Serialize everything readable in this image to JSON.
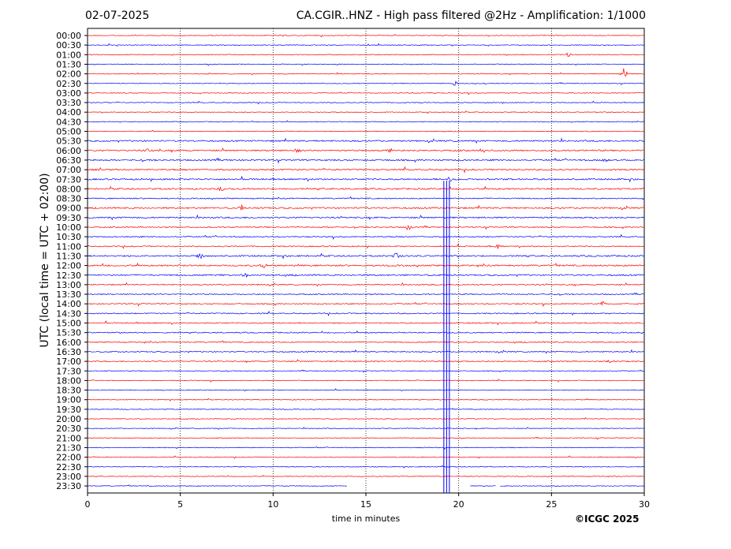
{
  "header": {
    "date": "02-07-2025",
    "title": "CA.CGIR..HNZ - High pass filtered @2Hz - Amplification: 1/1000"
  },
  "footer": {
    "copyright": "©ICGC 2025"
  },
  "colors": {
    "trace_a": "#ff0000",
    "trace_b": "#0000ff",
    "grid": "#000000"
  },
  "chart_data": {
    "type": "line",
    "title": "CA.CGIR..HNZ - High pass filtered @2Hz - Amplification: 1/1000",
    "xlabel": "time in minutes",
    "ylabel": "UTC (local time = UTC + 02:00)",
    "xlim": [
      0,
      30
    ],
    "x_ticks": [
      0,
      5,
      10,
      15,
      20,
      25,
      30
    ],
    "grid": "vertical dotted at 5, 10, 15, 20, 25",
    "row_labels": [
      "00:00",
      "00:30",
      "01:00",
      "01:30",
      "02:00",
      "02:30",
      "03:00",
      "03:30",
      "04:00",
      "04:30",
      "05:00",
      "05:30",
      "06:00",
      "06:30",
      "07:00",
      "07:30",
      "08:00",
      "08:30",
      "09:00",
      "09:30",
      "10:00",
      "10:30",
      "11:00",
      "11:30",
      "12:00",
      "12:30",
      "13:00",
      "13:30",
      "14:00",
      "14:30",
      "15:00",
      "15:30",
      "16:00",
      "16:30",
      "17:00",
      "17:30",
      "18:00",
      "18:30",
      "19:00",
      "19:30",
      "20:00",
      "20:30",
      "21:00",
      "21:30",
      "22:00",
      "22:30",
      "23:00",
      "23:30"
    ],
    "row_colors": "alternating red / blue by 30-minute row",
    "noise_level": [
      1,
      1,
      1,
      1,
      1,
      1,
      1,
      1,
      1,
      1,
      1,
      2,
      2,
      2,
      2,
      2,
      2,
      1.5,
      2,
      2,
      1.5,
      1.5,
      1.5,
      2,
      2,
      2,
      1.5,
      1.5,
      1.5,
      1.5,
      1.5,
      1.5,
      1.5,
      1.5,
      1.5,
      1,
      1,
      1,
      1,
      1,
      1,
      1,
      1,
      1,
      1,
      1,
      1,
      1
    ],
    "events": [
      {
        "row": 2,
        "minute": 25.9,
        "amplitude": 3
      },
      {
        "row": 4,
        "minute": 28.9,
        "amplitude": 8
      },
      {
        "row": 5,
        "minute": 19.8,
        "amplitude": 3
      },
      {
        "row": 12,
        "minute": 3.2,
        "amplitude": 3
      },
      {
        "row": 12,
        "minute": 11.3,
        "amplitude": 3
      },
      {
        "row": 12,
        "minute": 16.3,
        "amplitude": 3
      },
      {
        "row": 12,
        "minute": 21.3,
        "amplitude": 3
      },
      {
        "row": 13,
        "minute": 27.9,
        "amplitude": 4
      },
      {
        "row": 14,
        "minute": 0.8,
        "amplitude": 3
      },
      {
        "row": 15,
        "minute": 19.5,
        "amplitude": 4
      },
      {
        "row": 16,
        "minute": 7.2,
        "amplitude": 3
      },
      {
        "row": 18,
        "minute": 8.3,
        "amplitude": 6
      },
      {
        "row": 20,
        "minute": 17.3,
        "amplitude": 4
      },
      {
        "row": 22,
        "minute": 22.1,
        "amplitude": 4
      },
      {
        "row": 23,
        "minute": 6.1,
        "amplitude": 4
      },
      {
        "row": 23,
        "minute": 16.6,
        "amplitude": 7
      },
      {
        "row": 24,
        "minute": 9.5,
        "amplitude": 4
      },
      {
        "row": 25,
        "minute": 8.5,
        "amplitude": 4
      },
      {
        "row": 28,
        "minute": 27.8,
        "amplitude": 3
      },
      {
        "row": 34,
        "minute": 28.2,
        "amplitude": 3
      }
    ],
    "saturated_spike": {
      "row": 15,
      "minutes": [
        19.2,
        19.35,
        19.5
      ],
      "extends_to_row": 47
    },
    "gaps": [
      {
        "row": 47,
        "from_minute": 14.0,
        "to_minute": 20.6
      },
      {
        "row": 47,
        "from_minute": 22.0,
        "to_minute": 22.2
      }
    ]
  }
}
